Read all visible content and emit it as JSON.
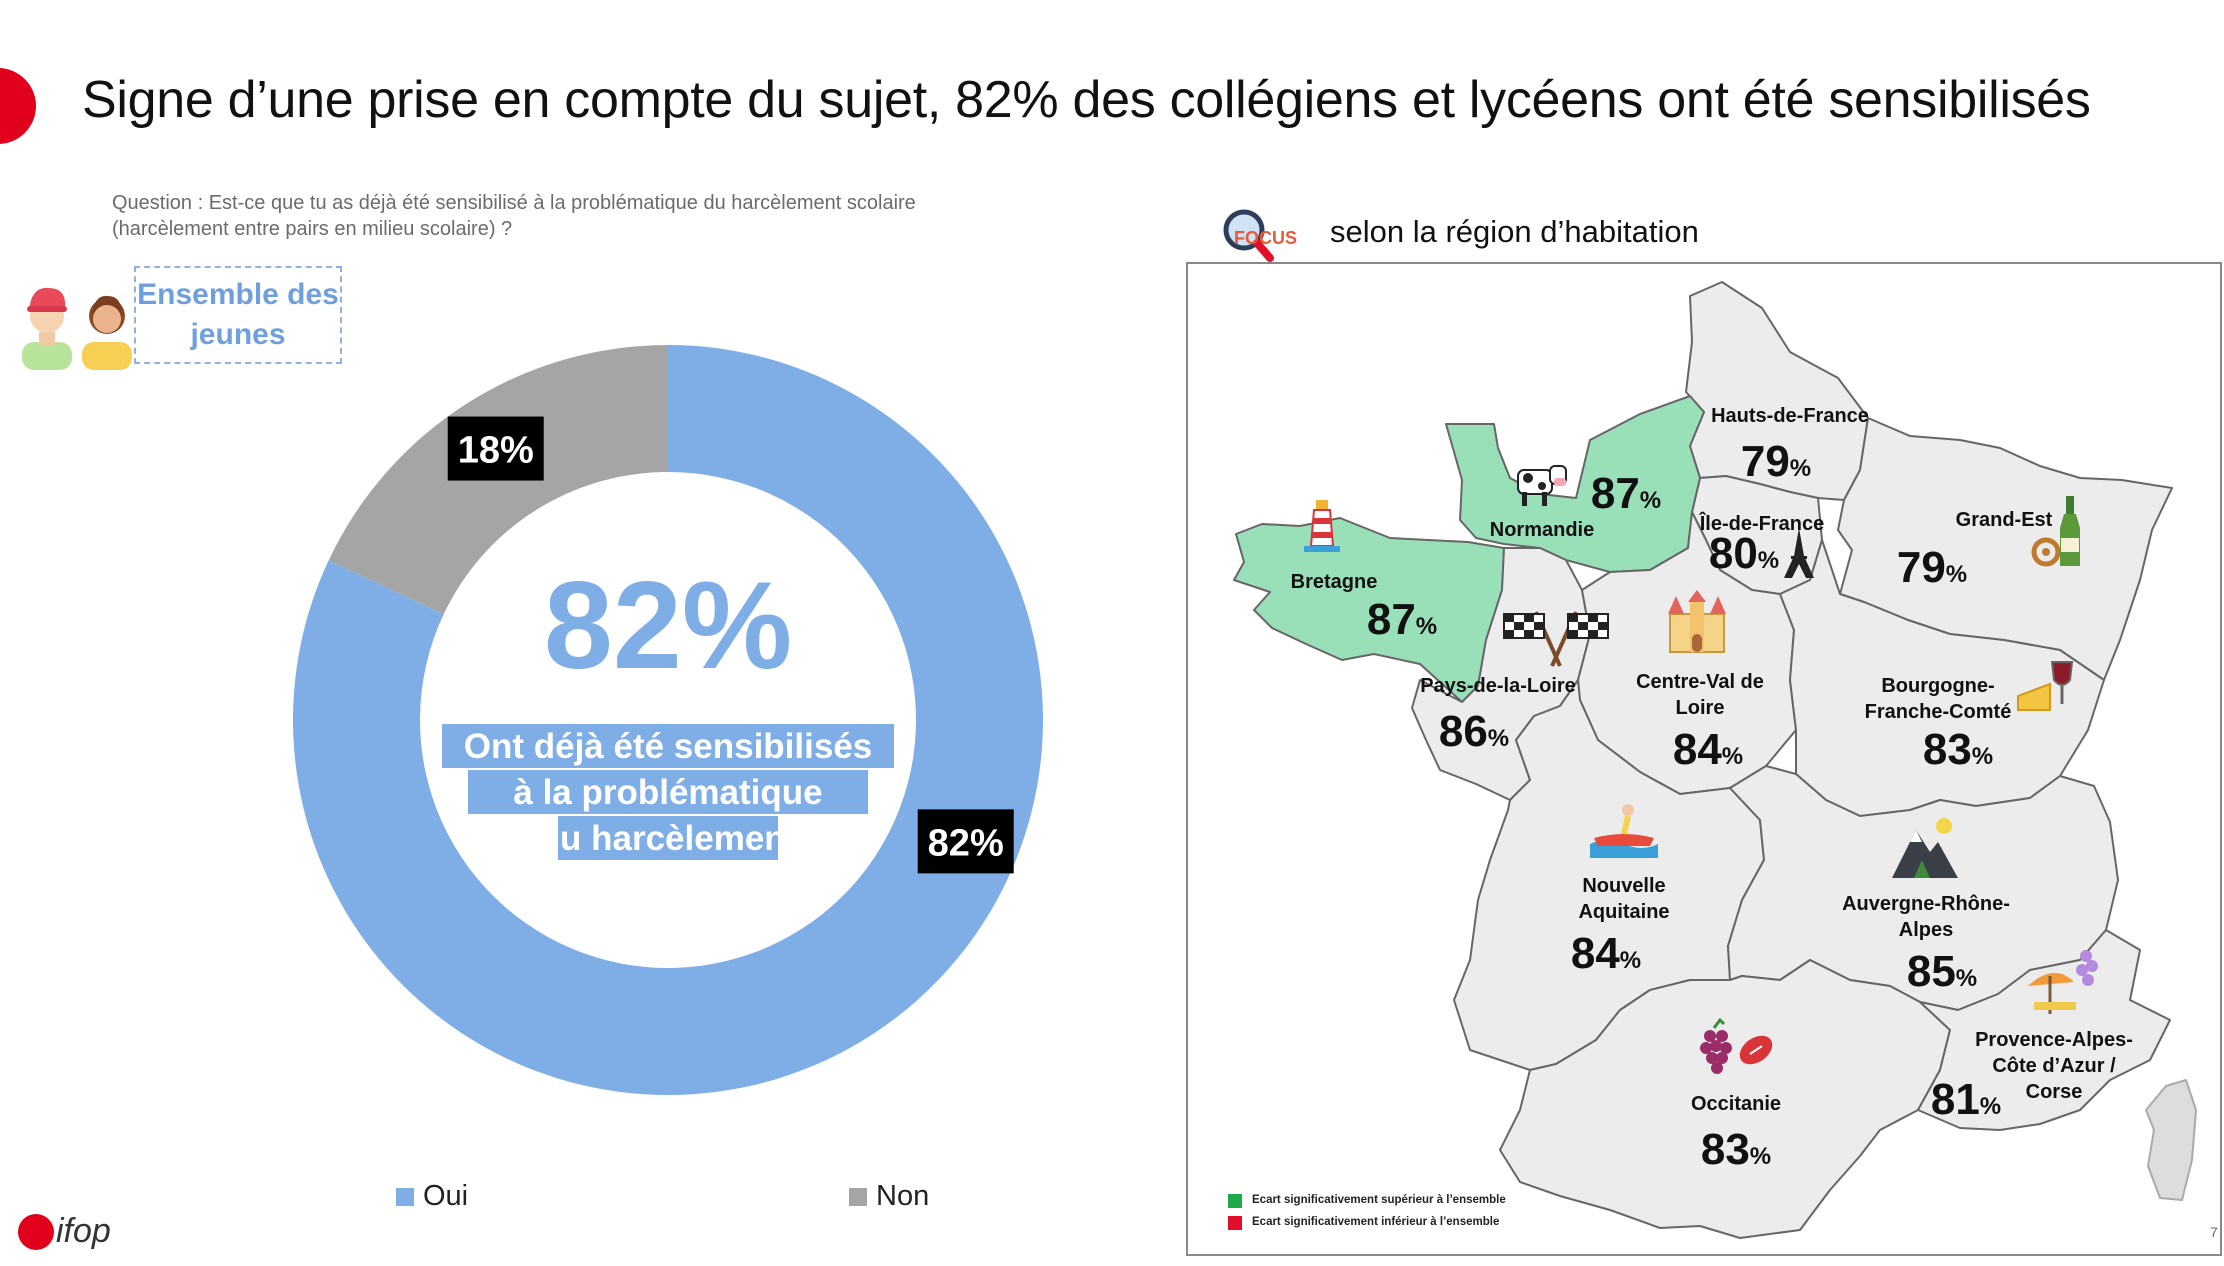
{
  "title": "Signe d’une prise en compte du sujet, 82% des collégiens et lycéens ont été sensibilisés",
  "question": "Question : Est-ce que tu as déjà été sensibilisé à la problématique du harcèlement scolaire (harcèlement entre pairs en milieu scolaire) ?",
  "ensemble_label": "Ensemble des jeunes",
  "focus": {
    "word": "FOCUS",
    "label": "selon la région d’habitation"
  },
  "brand": "ifop",
  "page_number": "7",
  "colors": {
    "oui": "#7faee6",
    "non": "#a5a5a5",
    "accent": "#e0001b",
    "map_fill": "#ececec",
    "map_highlight": "#99dfb8",
    "map_stroke": "#666666",
    "sup": "#1faa4a",
    "inf": "#e0102a"
  },
  "chart_data": [
    {
      "type": "pie",
      "variant": "donut",
      "title": "Ensemble des jeunes",
      "categories": [
        "Oui",
        "Non"
      ],
      "values": [
        82,
        18
      ],
      "labels": [
        "82%",
        "18%"
      ],
      "center_value": "82%",
      "center_text": "Ont déjà été sensibilisés à la problématique du harcèlement",
      "legend": [
        "Oui",
        "Non"
      ],
      "legend_position": "bottom"
    },
    {
      "type": "map",
      "title": "selon la région d’habitation",
      "regions": [
        {
          "name": "Hauts-de-France",
          "value": 79,
          "significance": "none"
        },
        {
          "name": "Normandie",
          "value": 87,
          "significance": "superior"
        },
        {
          "name": "Île-de-France",
          "value": 80,
          "significance": "none"
        },
        {
          "name": "Grand-Est",
          "value": 79,
          "significance": "none"
        },
        {
          "name": "Bretagne",
          "value": 87,
          "significance": "superior"
        },
        {
          "name": "Pays-de-la-Loire",
          "value": 86,
          "significance": "none"
        },
        {
          "name": "Centre-Val de Loire",
          "value": 84,
          "significance": "none"
        },
        {
          "name": "Bourgogne-Franche-Comté",
          "value": 83,
          "significance": "none"
        },
        {
          "name": "Nouvelle Aquitaine",
          "value": 84,
          "significance": "none"
        },
        {
          "name": "Auvergne-Rhône-Alpes",
          "value": 85,
          "significance": "none"
        },
        {
          "name": "Occitanie",
          "value": 83,
          "significance": "none"
        },
        {
          "name": "Provence-Alpes-Côte d’Azur / Corse",
          "value": 81,
          "significance": "none"
        }
      ],
      "percent_sign": "%",
      "legend": [
        {
          "label": "Ecart significativement supérieur à l’ensemble",
          "color": "#1faa4a"
        },
        {
          "label": "Ecart significativement inférieur à l’ensemble",
          "color": "#e0102a"
        }
      ]
    }
  ]
}
